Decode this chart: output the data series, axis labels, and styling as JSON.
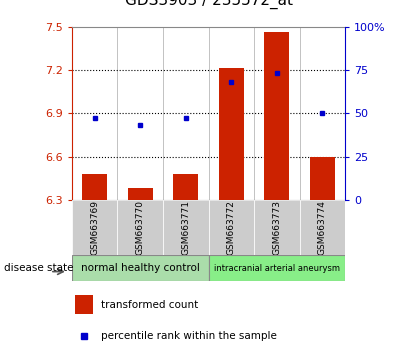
{
  "title": "GDS3903 / 235572_at",
  "samples": [
    "GSM663769",
    "GSM663770",
    "GSM663771",
    "GSM663772",
    "GSM663773",
    "GSM663774"
  ],
  "transformed_count": [
    6.48,
    6.38,
    6.48,
    7.21,
    7.46,
    6.6
  ],
  "percentile_rank": [
    47,
    43,
    47,
    68,
    73,
    50
  ],
  "ylim_left": [
    6.3,
    7.5
  ],
  "ylim_right": [
    0,
    100
  ],
  "yticks_left": [
    6.3,
    6.6,
    6.9,
    7.2,
    7.5
  ],
  "yticks_right": [
    0,
    25,
    50,
    75,
    100
  ],
  "bar_color": "#cc2200",
  "dot_color": "#0000cc",
  "title_fontsize": 11,
  "disease_groups": [
    {
      "label": "normal healthy control",
      "samples_idx": [
        0,
        1,
        2
      ],
      "color": "#aaddaa"
    },
    {
      "label": "intracranial arterial aneurysm",
      "samples_idx": [
        3,
        4,
        5
      ],
      "color": "#88ee88"
    }
  ],
  "disease_state_label": "disease state",
  "legend_items": [
    {
      "color": "#cc2200",
      "label": "transformed count"
    },
    {
      "color": "#0000cc",
      "label": "percentile rank within the sample"
    }
  ],
  "bar_width": 0.55,
  "left_axis_color": "#cc2200",
  "right_axis_color": "#0000cc",
  "sample_box_color": "#cccccc",
  "spine_color": "#888888"
}
